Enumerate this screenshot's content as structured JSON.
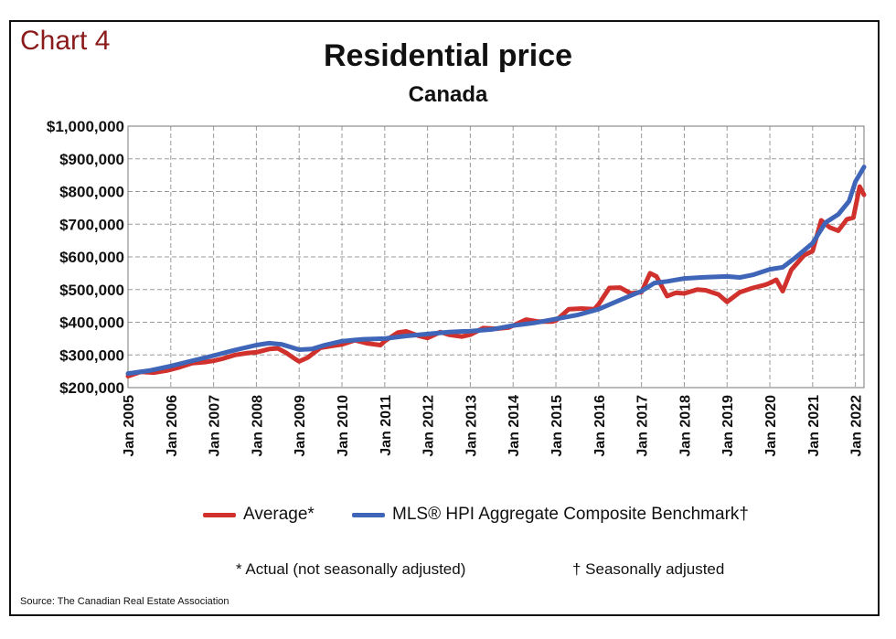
{
  "header": {
    "chart_label": "Chart 4",
    "title": "Residential price",
    "subtitle": "Canada"
  },
  "legend": {
    "average": "Average*",
    "mls": "MLS® HPI Aggregate Composite Benchmark†"
  },
  "notes": {
    "actual": "* Actual (not seasonally adjusted)",
    "seasonal": "† Seasonally adjusted"
  },
  "source": "Source: The Canadian Real Estate Association",
  "colors": {
    "average": "#d0312d",
    "mls": "#3f65b8",
    "grid": "#9a9a9a",
    "chart_label": "#8b1a1a"
  },
  "chart_data": {
    "type": "line",
    "title": "Residential price",
    "subtitle": "Canada",
    "ylim": [
      200000,
      1000000
    ],
    "y_ticks": [
      {
        "value": 1000000,
        "label": "$1,000,000"
      },
      {
        "value": 900000,
        "label": "$900,000"
      },
      {
        "value": 800000,
        "label": "$800,000"
      },
      {
        "value": 700000,
        "label": "$700,000"
      },
      {
        "value": 600000,
        "label": "$600,000"
      },
      {
        "value": 500000,
        "label": "$500,000"
      },
      {
        "value": 400000,
        "label": "$400,000"
      },
      {
        "value": 300000,
        "label": "$300,000"
      },
      {
        "value": 200000,
        "label": "$200,000"
      }
    ],
    "x_ticks": [
      {
        "value": 2005,
        "label": "Jan 2005"
      },
      {
        "value": 2006,
        "label": "Jan 2006"
      },
      {
        "value": 2007,
        "label": "Jan 2007"
      },
      {
        "value": 2008,
        "label": "Jan 2008"
      },
      {
        "value": 2009,
        "label": "Jan 2009"
      },
      {
        "value": 2010,
        "label": "Jan 2010"
      },
      {
        "value": 2011,
        "label": "Jan 2011"
      },
      {
        "value": 2012,
        "label": "Jan 2012"
      },
      {
        "value": 2013,
        "label": "Jan 2013"
      },
      {
        "value": 2014,
        "label": "Jan 2014"
      },
      {
        "value": 2015,
        "label": "Jan 2015"
      },
      {
        "value": 2016,
        "label": "Jan 2016"
      },
      {
        "value": 2017,
        "label": "Jan 2017"
      },
      {
        "value": 2018,
        "label": "Jan 2018"
      },
      {
        "value": 2019,
        "label": "Jan 2019"
      },
      {
        "value": 2020,
        "label": "Jan 2020"
      },
      {
        "value": 2021,
        "label": "Jan 2021"
      },
      {
        "value": 2022,
        "label": "Jan 2022"
      }
    ],
    "xlim": [
      2005,
      2022.2
    ],
    "grid": true,
    "legend_position": "bottom",
    "series": [
      {
        "name": "Average*",
        "color": "#d0312d",
        "points": [
          [
            2005.0,
            235000
          ],
          [
            2005.3,
            248000
          ],
          [
            2005.6,
            246000
          ],
          [
            2005.9,
            252000
          ],
          [
            2006.2,
            262000
          ],
          [
            2006.5,
            275000
          ],
          [
            2006.8,
            278000
          ],
          [
            2007.0,
            282000
          ],
          [
            2007.2,
            288000
          ],
          [
            2007.5,
            300000
          ],
          [
            2007.8,
            306000
          ],
          [
            2008.0,
            308000
          ],
          [
            2008.3,
            318000
          ],
          [
            2008.5,
            320000
          ],
          [
            2008.7,
            306000
          ],
          [
            2008.9,
            288000
          ],
          [
            2009.0,
            280000
          ],
          [
            2009.2,
            292000
          ],
          [
            2009.5,
            322000
          ],
          [
            2009.8,
            328000
          ],
          [
            2010.0,
            332000
          ],
          [
            2010.3,
            345000
          ],
          [
            2010.6,
            335000
          ],
          [
            2010.9,
            330000
          ],
          [
            2011.0,
            342000
          ],
          [
            2011.3,
            368000
          ],
          [
            2011.5,
            372000
          ],
          [
            2011.8,
            358000
          ],
          [
            2012.0,
            352000
          ],
          [
            2012.3,
            370000
          ],
          [
            2012.5,
            362000
          ],
          [
            2012.8,
            356000
          ],
          [
            2013.0,
            362000
          ],
          [
            2013.3,
            382000
          ],
          [
            2013.6,
            380000
          ],
          [
            2013.9,
            384000
          ],
          [
            2014.0,
            390000
          ],
          [
            2014.3,
            408000
          ],
          [
            2014.6,
            402000
          ],
          [
            2014.9,
            402000
          ],
          [
            2015.0,
            405000
          ],
          [
            2015.3,
            440000
          ],
          [
            2015.6,
            442000
          ],
          [
            2015.9,
            440000
          ],
          [
            2016.0,
            455000
          ],
          [
            2016.25,
            505000
          ],
          [
            2016.5,
            506000
          ],
          [
            2016.75,
            488000
          ],
          [
            2017.0,
            492000
          ],
          [
            2017.2,
            550000
          ],
          [
            2017.35,
            540000
          ],
          [
            2017.6,
            480000
          ],
          [
            2017.8,
            490000
          ],
          [
            2018.0,
            488000
          ],
          [
            2018.3,
            500000
          ],
          [
            2018.5,
            498000
          ],
          [
            2018.8,
            485000
          ],
          [
            2019.0,
            462000
          ],
          [
            2019.3,
            492000
          ],
          [
            2019.6,
            505000
          ],
          [
            2019.9,
            515000
          ],
          [
            2020.0,
            520000
          ],
          [
            2020.15,
            530000
          ],
          [
            2020.3,
            495000
          ],
          [
            2020.5,
            560000
          ],
          [
            2020.8,
            605000
          ],
          [
            2021.0,
            618000
          ],
          [
            2021.2,
            712000
          ],
          [
            2021.4,
            690000
          ],
          [
            2021.6,
            680000
          ],
          [
            2021.8,
            715000
          ],
          [
            2021.95,
            720000
          ],
          [
            2022.1,
            815000
          ],
          [
            2022.2,
            790000
          ]
        ]
      },
      {
        "name": "MLS® HPI Aggregate Composite Benchmark†",
        "color": "#3f65b8",
        "points": [
          [
            2005.0,
            243000
          ],
          [
            2005.5,
            252000
          ],
          [
            2006.0,
            266000
          ],
          [
            2006.5,
            282000
          ],
          [
            2007.0,
            298000
          ],
          [
            2007.5,
            315000
          ],
          [
            2008.0,
            330000
          ],
          [
            2008.3,
            336000
          ],
          [
            2008.6,
            332000
          ],
          [
            2009.0,
            316000
          ],
          [
            2009.3,
            318000
          ],
          [
            2009.6,
            330000
          ],
          [
            2010.0,
            342000
          ],
          [
            2010.5,
            348000
          ],
          [
            2011.0,
            350000
          ],
          [
            2011.5,
            358000
          ],
          [
            2012.0,
            364000
          ],
          [
            2012.5,
            370000
          ],
          [
            2013.0,
            373000
          ],
          [
            2013.5,
            378000
          ],
          [
            2014.0,
            390000
          ],
          [
            2014.5,
            398000
          ],
          [
            2015.0,
            410000
          ],
          [
            2015.5,
            422000
          ],
          [
            2016.0,
            440000
          ],
          [
            2016.5,
            468000
          ],
          [
            2017.0,
            495000
          ],
          [
            2017.3,
            520000
          ],
          [
            2017.6,
            525000
          ],
          [
            2018.0,
            534000
          ],
          [
            2018.5,
            538000
          ],
          [
            2019.0,
            540000
          ],
          [
            2019.3,
            537000
          ],
          [
            2019.6,
            545000
          ],
          [
            2020.0,
            562000
          ],
          [
            2020.3,
            568000
          ],
          [
            2020.6,
            598000
          ],
          [
            2021.0,
            642000
          ],
          [
            2021.3,
            705000
          ],
          [
            2021.6,
            730000
          ],
          [
            2021.85,
            770000
          ],
          [
            2022.0,
            830000
          ],
          [
            2022.2,
            875000
          ]
        ]
      }
    ]
  }
}
